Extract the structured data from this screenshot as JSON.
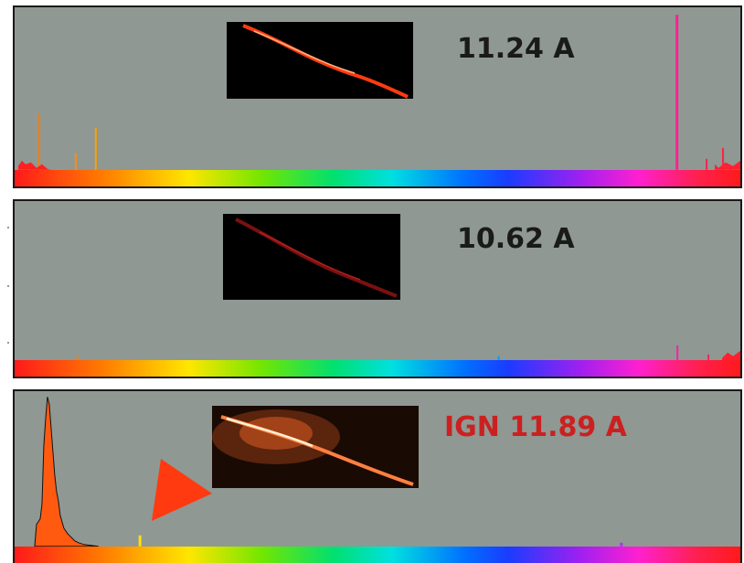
{
  "panels": [
    {
      "label": "11.24 A"
    },
    {
      "label": "10.62 A"
    },
    {
      "label": "IGN 11.89 A"
    }
  ],
  "colors": {
    "panel_bg": "#8f9893",
    "ign_label": "#cc2020",
    "arrow": "#ff3a10"
  },
  "icons": {
    "arrow": "red-triangle-arrow-icon"
  }
}
